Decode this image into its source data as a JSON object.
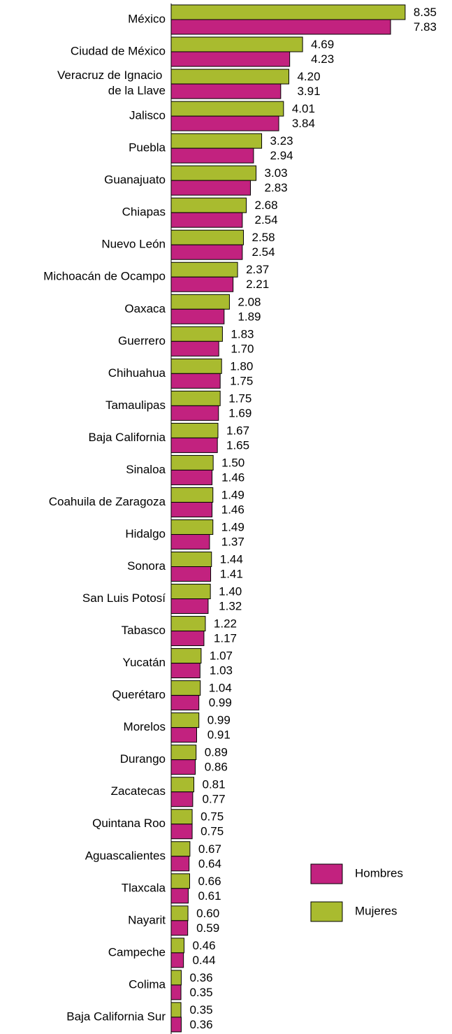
{
  "chart_data": {
    "type": "bar",
    "orientation": "horizontal",
    "categories": [
      "México",
      "Ciudad de México",
      "Veracruz de Ignacio de la Llave",
      "Jalisco",
      "Puebla",
      "Guanajuato",
      "Chiapas",
      "Nuevo León",
      "Michoacán de Ocampo",
      "Oaxaca",
      "Guerrero",
      "Chihuahua",
      "Tamaulipas",
      "Baja California",
      "Sinaloa",
      "Coahuila de Zaragoza",
      "Hidalgo",
      "Sonora",
      "San Luis Potosí",
      "Tabasco",
      "Yucatán",
      "Querétaro",
      "Morelos",
      "Durango",
      "Zacatecas",
      "Quintana Roo",
      "Aguascalientes",
      "Tlaxcala",
      "Nayarit",
      "Campeche",
      "Colima",
      "Baja California Sur"
    ],
    "series": [
      {
        "name": "Mujeres",
        "color": "#a9bb2f",
        "values": [
          8.35,
          4.69,
          4.2,
          4.01,
          3.23,
          3.03,
          2.68,
          2.58,
          2.37,
          2.08,
          1.83,
          1.8,
          1.75,
          1.67,
          1.5,
          1.49,
          1.49,
          1.44,
          1.4,
          1.22,
          1.07,
          1.04,
          0.99,
          0.89,
          0.81,
          0.75,
          0.67,
          0.66,
          0.6,
          0.46,
          0.36,
          0.35
        ],
        "value_labels": [
          "8.35",
          "4.69",
          "4.20",
          "4.01",
          "3.23",
          "3.03",
          "2.68",
          "2.58",
          "2.37",
          "2.08",
          "1.83",
          "1.80",
          "1.75",
          "1.67",
          "1.50",
          "1.49",
          "1.49",
          "1.44",
          "1.40",
          "1.22",
          "1.07",
          "1.04",
          "0.99",
          "0.89",
          "0.81",
          "0.75",
          "0.67",
          "0.66",
          "0.60",
          "0.46",
          "0.36",
          "0.35"
        ]
      },
      {
        "name": "Hombres",
        "color": "#c2227f",
        "values": [
          7.83,
          4.23,
          3.91,
          3.84,
          2.94,
          2.83,
          2.54,
          2.54,
          2.21,
          1.89,
          1.7,
          1.75,
          1.69,
          1.65,
          1.46,
          1.46,
          1.37,
          1.41,
          1.32,
          1.17,
          1.03,
          0.99,
          0.91,
          0.86,
          0.77,
          0.75,
          0.64,
          0.61,
          0.59,
          0.44,
          0.35,
          0.36
        ],
        "value_labels": [
          "7.83",
          "4.23",
          "3.91",
          "3.84",
          "2.94",
          "2.83",
          "2.54",
          "2.54",
          "2.21",
          "1.89",
          "1.70",
          "1.75",
          "1.69",
          "1.65",
          "1.46",
          "1.46",
          "1.37",
          "1.41",
          "1.32",
          "1.17",
          "1.03",
          "0.99",
          "0.91",
          "0.86",
          "0.77",
          "0.75",
          "0.64",
          "0.61",
          "0.59",
          "0.44",
          "0.35",
          "0.36"
        ]
      }
    ],
    "xlim": [
      0,
      9
    ],
    "legend": "lower right"
  }
}
